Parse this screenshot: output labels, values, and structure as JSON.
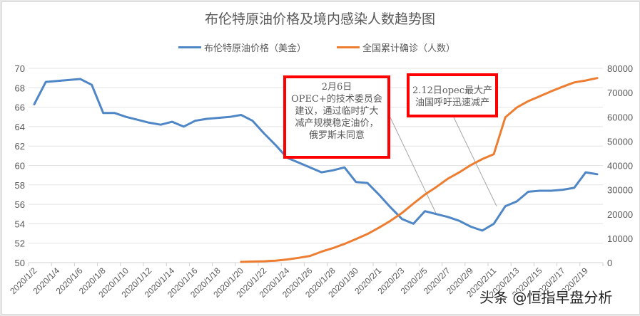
{
  "chart_data": {
    "type": "line",
    "title": "布伦特原油价格及境内感染人数趋势图",
    "legend_position": "top",
    "grid": true,
    "categories": [
      "2020/1/2",
      "2020/1/3",
      "2020/1/4",
      "2020/1/5",
      "2020/1/6",
      "2020/1/7",
      "2020/1/8",
      "2020/1/9",
      "2020/1/10",
      "2020/1/11",
      "2020/1/12",
      "2020/1/13",
      "2020/1/14",
      "2020/1/15",
      "2020/1/16",
      "2020/1/17",
      "2020/1/18",
      "2020/1/19",
      "2020/1/20",
      "2020/1/21",
      "2020/1/22",
      "2020/1/23",
      "2020/1/24",
      "2020/1/25",
      "2020/1/26",
      "2020/1/27",
      "2020/1/28",
      "2020/1/29",
      "2020/1/30",
      "2020/1/31",
      "2020/2/1",
      "2020/2/2",
      "2020/2/3",
      "2020/2/4",
      "2020/2/5",
      "2020/2/6",
      "2020/2/7",
      "2020/2/8",
      "2020/2/9",
      "2020/2/10",
      "2020/2/11",
      "2020/2/12",
      "2020/2/13",
      "2020/2/14",
      "2020/2/15",
      "2020/2/16",
      "2020/2/17",
      "2020/2/18",
      "2020/2/19",
      "2020/2/20"
    ],
    "x_tick_labels": [
      "2020/1/2",
      "2020/1/4",
      "2020/1/6",
      "2020/1/8",
      "2020/1/10",
      "2020/1/12",
      "2020/1/14",
      "2020/1/16",
      "2020/1/18",
      "2020/1/20",
      "2020/1/22",
      "2020/1/24",
      "2020/1/26",
      "2020/1/28",
      "2020/1/30",
      "2020/2/1",
      "2020/2/3",
      "2020/2/5",
      "2020/2/7",
      "2020/2/9",
      "2020/2/11",
      "2020/2/13",
      "2020/2/15",
      "2020/2/17",
      "2020/2/19"
    ],
    "series": [
      {
        "name": "布伦特原油价格（美金）",
        "axis": "left",
        "color": "#4e86c6",
        "values": [
          66.3,
          68.6,
          68.7,
          68.8,
          68.9,
          68.3,
          65.4,
          65.4,
          65.0,
          64.7,
          64.4,
          64.2,
          64.5,
          64.0,
          64.6,
          64.8,
          64.9,
          65.0,
          65.2,
          64.6,
          63.3,
          62.1,
          60.8,
          60.3,
          59.8,
          59.3,
          59.5,
          59.8,
          58.3,
          58.2,
          57.0,
          55.7,
          54.5,
          54.0,
          55.3,
          55.0,
          54.7,
          54.3,
          53.7,
          53.3,
          54.0,
          55.8,
          56.3,
          57.3,
          57.4,
          57.4,
          57.5,
          57.7,
          59.3,
          59.1
        ]
      },
      {
        "name": "全国累计确诊（人数）",
        "axis": "right",
        "color": "#ed7d31",
        "values": [
          null,
          null,
          null,
          null,
          null,
          null,
          null,
          null,
          null,
          null,
          null,
          null,
          null,
          null,
          null,
          null,
          null,
          null,
          291,
          440,
          571,
          830,
          1287,
          1975,
          2744,
          4515,
          5974,
          7711,
          9692,
          11791,
          14380,
          17205,
          20438,
          24324,
          28018,
          31161,
          34546,
          37198,
          40171,
          42638,
          44653,
          59804,
          63851,
          66492,
          68500,
          70548,
          72436,
          74185,
          75002,
          75993
        ]
      }
    ],
    "left_axis": {
      "ticks": [
        50,
        52,
        54,
        56,
        58,
        60,
        62,
        64,
        66,
        68,
        70
      ],
      "ylim": [
        50,
        70
      ]
    },
    "right_axis": {
      "ticks": [
        0,
        10000,
        20000,
        30000,
        40000,
        50000,
        60000,
        70000,
        80000
      ],
      "ylim": [
        0,
        80000
      ]
    },
    "annotations": [
      {
        "lines": [
          "2月6日",
          "OPEC+的技术委员会",
          "建议，通过临时扩大",
          "减产规模稳定油价，",
          "俄罗斯未同意"
        ],
        "target": "2020/2/6"
      },
      {
        "lines": [
          "2.12日opec最大产",
          "油国呼吁迅速减产"
        ],
        "target": "2020/2/12"
      }
    ]
  },
  "legend": {
    "brent_label": "布伦特原油价格（美金）",
    "cases_label": "全国累计确诊（人数）"
  },
  "watermark": "头条 @恒指早盘分析"
}
